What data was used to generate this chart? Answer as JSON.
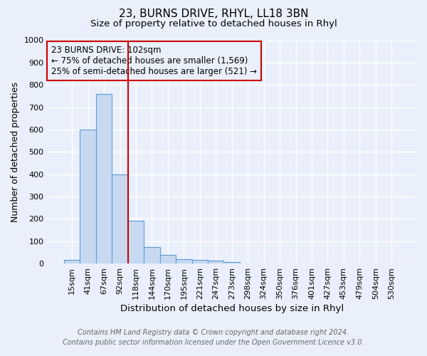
{
  "title": "23, BURNS DRIVE, RHYL, LL18 3BN",
  "subtitle": "Size of property relative to detached houses in Rhyl",
  "xlabel": "Distribution of detached houses by size in Rhyl",
  "ylabel": "Number of detached properties",
  "bar_labels": [
    "15sqm",
    "41sqm",
    "67sqm",
    "92sqm",
    "118sqm",
    "144sqm",
    "170sqm",
    "195sqm",
    "221sqm",
    "247sqm",
    "273sqm",
    "298sqm",
    "324sqm",
    "350sqm",
    "376sqm",
    "401sqm",
    "427sqm",
    "453sqm",
    "479sqm",
    "504sqm",
    "530sqm"
  ],
  "bar_heights": [
    15,
    600,
    760,
    400,
    190,
    75,
    38,
    18,
    15,
    12,
    8,
    0,
    0,
    0,
    0,
    0,
    0,
    0,
    0,
    0,
    0
  ],
  "bar_color": "#c6d9f1",
  "bar_edge_color": "#5b9bd5",
  "annotation_text": "23 BURNS DRIVE: 102sqm\n← 75% of detached houses are smaller (1,569)\n25% of semi-detached houses are larger (521) →",
  "annotation_box_color": "#cc0000",
  "ylim": [
    0,
    1000
  ],
  "yticks": [
    0,
    100,
    200,
    300,
    400,
    500,
    600,
    700,
    800,
    900,
    1000
  ],
  "footer_line1": "Contains HM Land Registry data © Crown copyright and database right 2024.",
  "footer_line2": "Contains public sector information licensed under the Open Government Licence v3.0.",
  "bg_color": "#eaf0fb",
  "grid_color": "#ffffff",
  "title_fontsize": 11,
  "subtitle_fontsize": 9.5,
  "axis_label_fontsize": 9,
  "tick_fontsize": 8,
  "annotation_fontsize": 8.5,
  "footer_fontsize": 7
}
